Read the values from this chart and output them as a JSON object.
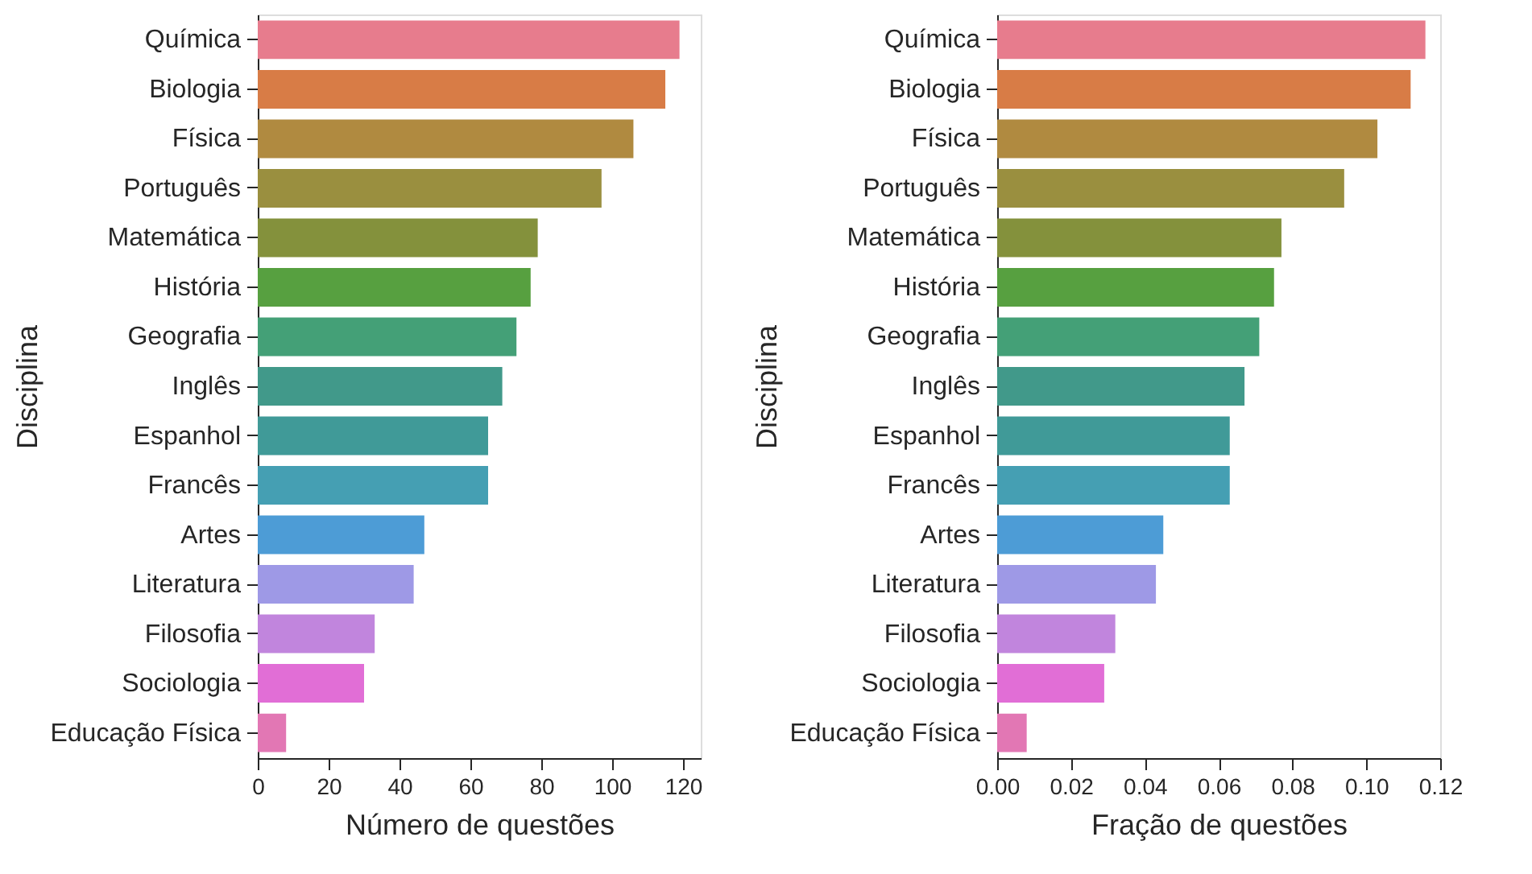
{
  "chart_data": [
    {
      "type": "bar",
      "orientation": "horizontal",
      "xlabel": "Número de questões",
      "ylabel": "Disciplina",
      "categories": [
        "Química",
        "Biologia",
        "Física",
        "Português",
        "Matemática",
        "História",
        "Geografia",
        "Inglês",
        "Espanhol",
        "Francês",
        "Artes",
        "Literatura",
        "Filosofia",
        "Sociologia",
        "Educação Física"
      ],
      "values": [
        119,
        115,
        106,
        97,
        79,
        77,
        73,
        69,
        65,
        65,
        47,
        44,
        33,
        30,
        8
      ],
      "colors": [
        "#e77c8d",
        "#d87c46",
        "#b08a40",
        "#9a8f3f",
        "#84913c",
        "#57a040",
        "#44a077",
        "#41998a",
        "#409a98",
        "#459fb3",
        "#4d9cd6",
        "#9e99e6",
        "#c185dd",
        "#e16ed6",
        "#e277b4"
      ],
      "xlim": [
        0,
        125
      ],
      "xticks": [
        0,
        20,
        40,
        60,
        80,
        100,
        120
      ],
      "grid": false
    },
    {
      "type": "bar",
      "orientation": "horizontal",
      "xlabel": "Fração de questões",
      "ylabel": "Disciplina",
      "categories": [
        "Química",
        "Biologia",
        "Física",
        "Português",
        "Matemática",
        "História",
        "Geografia",
        "Inglês",
        "Espanhol",
        "Francês",
        "Artes",
        "Literatura",
        "Filosofia",
        "Sociologia",
        "Educação Física"
      ],
      "values": [
        0.116,
        0.112,
        0.103,
        0.094,
        0.077,
        0.075,
        0.071,
        0.067,
        0.063,
        0.063,
        0.045,
        0.043,
        0.032,
        0.029,
        0.008
      ],
      "colors": [
        "#e77c8d",
        "#d87c46",
        "#b08a40",
        "#9a8f3f",
        "#84913c",
        "#57a040",
        "#44a077",
        "#41998a",
        "#409a98",
        "#459fb3",
        "#4d9cd6",
        "#9e99e6",
        "#c185dd",
        "#e16ed6",
        "#e277b4"
      ],
      "xlim": [
        0,
        0.12
      ],
      "xticks": [
        {
          "value": 0,
          "label": "0.00"
        },
        {
          "value": 0.02,
          "label": "0.02"
        },
        {
          "value": 0.04,
          "label": "0.04"
        },
        {
          "value": 0.06,
          "label": "0.06"
        },
        {
          "value": 0.08,
          "label": "0.08"
        },
        {
          "value": 0.1,
          "label": "0.10"
        },
        {
          "value": 0.12,
          "label": "0.12"
        }
      ],
      "grid": false
    }
  ]
}
